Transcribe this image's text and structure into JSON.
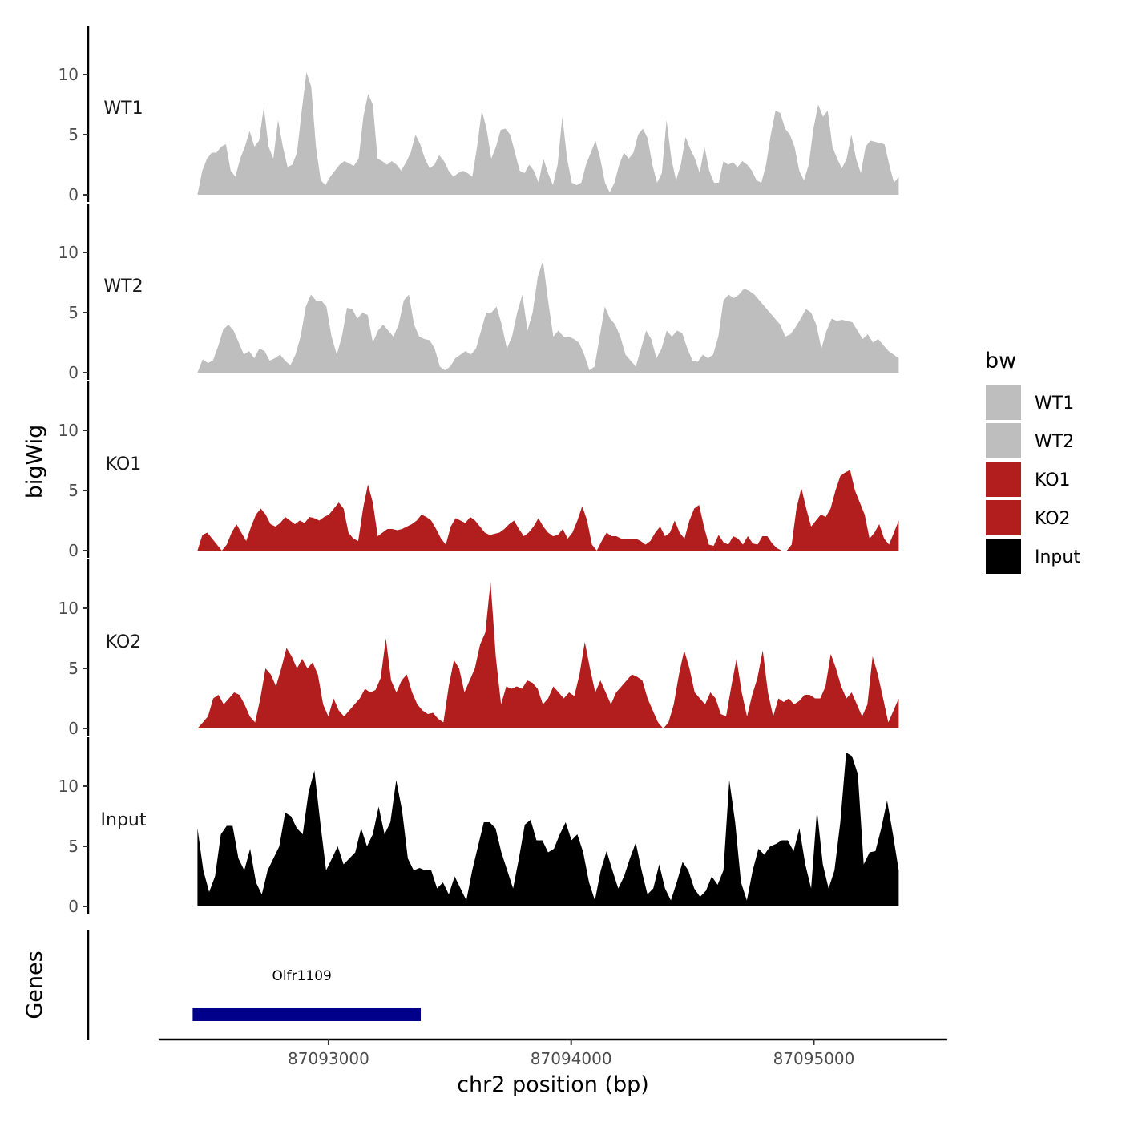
{
  "chart_data": {
    "type": "area",
    "xlabel": "chr2 position (bp)",
    "ylabel": "bigWig",
    "genes_label": "Genes",
    "xlim": [
      87092300,
      87095550
    ],
    "x_ticks": [
      87093000,
      87094000,
      87095000
    ],
    "x_tick_labels": [
      "87093000",
      "87094000",
      "87095000"
    ],
    "ylim": [
      0,
      14
    ],
    "y_ticks": [
      0,
      5,
      10
    ],
    "y_tick_labels": [
      "0",
      "5",
      "10"
    ],
    "x_start": 87092460,
    "x_end": 87095350,
    "series": [
      {
        "name": "WT1",
        "color": "#bebebe",
        "values": [
          0,
          2,
          3,
          3.5,
          3.5,
          4,
          4.2,
          2,
          1.5,
          3,
          4,
          5.3,
          4,
          4.5,
          7.3,
          4,
          3,
          6.2,
          4,
          2.3,
          2.5,
          3.5,
          7,
          10.2,
          9,
          4,
          1.2,
          0.8,
          1.5,
          2,
          2.5,
          2.8,
          2.6,
          2.4,
          3,
          6.5,
          8.4,
          7.5,
          3,
          2.8,
          2.5,
          2.8,
          2.5,
          2,
          2.7,
          3.5,
          5,
          4.2,
          3,
          2.2,
          2.5,
          3.3,
          2.8,
          2,
          1.5,
          1.8,
          2,
          1.8,
          1.5,
          4,
          7,
          5.5,
          3,
          4,
          5.4,
          5.5,
          5,
          3.5,
          2,
          1.8,
          2.5,
          2,
          1,
          3,
          1.8,
          0.8,
          2.5,
          6.5,
          3,
          1,
          0.8,
          1,
          2.5,
          3.5,
          4.5,
          3,
          1,
          0.2,
          1,
          2.5,
          3.5,
          3,
          3.5,
          5,
          5.5,
          4.7,
          2.5,
          1,
          1.8,
          6.2,
          3,
          1.2,
          2.5,
          4.8,
          3.8,
          3,
          1.8,
          4,
          2,
          1,
          1,
          2.8,
          2.5,
          2.7,
          2.3,
          2.8,
          2.5,
          2,
          1.2,
          1,
          2.5,
          5,
          7,
          6.8,
          5.5,
          5,
          4,
          2,
          1.2,
          2.5,
          5.5,
          7.5,
          6.5,
          7,
          4,
          3,
          2.2,
          3,
          5,
          3,
          1.8,
          4,
          4.5,
          4.4,
          4.3,
          4.2,
          2.5,
          1,
          1.5
        ]
      },
      {
        "name": "WT2",
        "color": "#bebebe",
        "values": [
          0,
          1.1,
          0.8,
          1,
          2.2,
          3.6,
          4,
          3.5,
          2.5,
          1.5,
          1.8,
          1.2,
          2,
          1.8,
          1,
          1.2,
          1.5,
          1,
          0.6,
          1.5,
          3,
          5.5,
          6.5,
          6,
          6,
          5.5,
          3,
          1.5,
          3,
          5.4,
          5.3,
          4.5,
          5,
          4.8,
          2.5,
          3.5,
          4,
          3.5,
          3,
          4,
          6,
          6.5,
          4,
          3,
          2.8,
          2.7,
          2,
          0.5,
          0.2,
          0.5,
          1.2,
          1.5,
          1.8,
          1.5,
          2,
          3.5,
          5,
          5,
          5.5,
          4,
          2,
          3,
          5,
          6.5,
          3.5,
          5,
          8,
          9.3,
          6,
          3,
          3.5,
          3,
          3,
          2.8,
          2.5,
          1.5,
          0.2,
          0.5,
          3,
          5.5,
          4.5,
          4,
          3,
          1.5,
          1,
          0.5,
          2,
          3.5,
          2.8,
          1.2,
          2,
          3.5,
          3,
          3.5,
          3.3,
          2,
          1,
          0.9,
          1.5,
          1.2,
          1.5,
          3,
          6,
          6.5,
          6.2,
          6.5,
          7,
          6.8,
          6.5,
          6,
          5.5,
          5,
          4.5,
          4,
          3,
          3.2,
          3.8,
          4.5,
          5.3,
          5,
          4,
          2,
          3.5,
          4.5,
          4.3,
          4.4,
          4.3,
          4.2,
          3.5,
          2.8,
          3.2,
          2.5,
          2.8,
          2.3,
          1.8,
          1.5,
          1.2
        ]
      },
      {
        "name": "KO1",
        "color": "#b21e1e",
        "values": [
          0,
          1.3,
          1.5,
          1,
          0.5,
          0,
          0.5,
          1.5,
          2.2,
          1.5,
          0.8,
          2,
          3,
          3.5,
          3,
          2.2,
          2,
          2.3,
          2.8,
          2.5,
          2.2,
          2.5,
          2.3,
          2.8,
          2.7,
          2.5,
          2.8,
          3,
          3.5,
          4,
          3.5,
          1.5,
          1,
          0.8,
          3.5,
          5.5,
          4,
          1.2,
          1.5,
          1.8,
          1.8,
          1.7,
          1.8,
          2,
          2.2,
          2.5,
          3,
          2.8,
          2.5,
          1.8,
          1,
          0.5,
          2,
          2.7,
          2.5,
          2.3,
          2.8,
          2.5,
          2,
          1.5,
          1.3,
          1.4,
          1.5,
          1.8,
          2.2,
          2.5,
          1.8,
          1.2,
          1.5,
          2,
          2.7,
          2,
          1.5,
          1.2,
          1.3,
          1.8,
          1,
          1.5,
          2.5,
          3.7,
          2.5,
          0.5,
          0,
          0.8,
          1.5,
          1.2,
          1.2,
          1,
          1,
          1,
          1,
          0.8,
          0.5,
          0.8,
          1.5,
          2,
          1.2,
          1.5,
          2.5,
          1.5,
          1,
          2.5,
          3.5,
          3.8,
          2,
          0.5,
          0.4,
          1.3,
          0.7,
          0.5,
          1.2,
          1,
          0.5,
          1.2,
          0.6,
          0.5,
          1.2,
          1.2,
          0.6,
          0.2,
          0,
          0,
          0.5,
          3.5,
          5.2,
          3.5,
          2,
          2.5,
          3,
          2.8,
          3.5,
          5,
          6.2,
          6.5,
          6.7,
          5,
          4,
          3,
          1,
          1.5,
          2.2,
          1,
          0.5,
          1.5,
          2.5
        ]
      },
      {
        "name": "KO2",
        "color": "#b21e1e",
        "values": [
          0,
          0.5,
          1,
          2.5,
          2.8,
          2,
          2.5,
          3,
          2.8,
          2,
          1,
          0.5,
          2.5,
          5,
          4.5,
          3.5,
          5,
          6.7,
          6,
          5,
          5.8,
          5,
          5.5,
          4.5,
          2,
          1,
          2.5,
          1.5,
          1,
          1.5,
          2,
          2.5,
          3.3,
          3,
          3.2,
          4.2,
          7.5,
          4,
          3,
          4,
          4.5,
          3,
          2,
          1.5,
          1.2,
          1.3,
          0.8,
          0.5,
          3.5,
          5.7,
          5,
          3,
          4,
          5,
          7,
          8,
          12.2,
          6,
          2,
          3.5,
          3.3,
          3.5,
          3.3,
          4,
          3.8,
          3.3,
          2,
          2.5,
          3.5,
          3,
          2.5,
          3,
          2.7,
          4.5,
          7.2,
          5,
          3,
          4,
          3,
          2,
          3,
          3.5,
          4,
          4.5,
          4.3,
          4,
          2.5,
          1.5,
          0.5,
          0,
          0.5,
          2,
          4.5,
          6.5,
          5,
          3,
          2.5,
          2,
          3,
          2.5,
          1.2,
          1,
          3.5,
          5.8,
          3,
          1,
          2.8,
          4.2,
          6.5,
          3,
          1,
          2.5,
          2.2,
          2.5,
          2,
          2.3,
          2.8,
          2.8,
          2.5,
          2.5,
          3.5,
          6.2,
          5,
          3.5,
          2.5,
          3,
          2,
          1,
          2,
          6,
          4.5,
          2.5,
          0.5,
          1.5,
          2.5
        ]
      },
      {
        "name": "Input",
        "color": "#000000",
        "values": [
          6.5,
          3,
          1.2,
          2.5,
          6,
          6.7,
          6.7,
          4,
          3,
          4.8,
          2,
          1,
          3,
          4,
          5,
          7.8,
          7.5,
          6.5,
          6,
          9.5,
          11.3,
          7,
          3,
          4,
          5,
          3.5,
          4,
          4.5,
          6.5,
          5,
          6,
          8.3,
          6,
          7,
          10.5,
          8,
          4,
          3,
          3.2,
          3,
          3,
          1.5,
          2,
          1,
          2.5,
          1.5,
          0.5,
          3,
          5,
          7,
          7,
          6.5,
          4.5,
          3,
          1.5,
          4,
          6.8,
          7.2,
          5.5,
          5.5,
          4.5,
          4.8,
          6,
          7,
          5.5,
          6,
          4.5,
          2,
          0.5,
          3,
          4.6,
          3,
          1.5,
          2.5,
          4,
          5.3,
          3,
          1,
          1.5,
          3.5,
          1.5,
          0.5,
          2,
          3.7,
          3,
          1.5,
          0.8,
          1.3,
          2.5,
          1.8,
          3,
          10.5,
          7,
          2,
          0.5,
          3,
          4.8,
          4.3,
          5,
          5.2,
          5.5,
          5.5,
          4.6,
          6.5,
          3.5,
          1.5,
          8,
          3.5,
          1.5,
          3,
          7,
          12.8,
          12.5,
          11,
          3.5,
          4.5,
          4.6,
          6.5,
          8.8,
          6,
          3
        ]
      }
    ],
    "legend": {
      "title": "bw",
      "items": [
        {
          "label": "WT1",
          "color": "#bebebe"
        },
        {
          "label": "WT2",
          "color": "#bebebe"
        },
        {
          "label": "KO1",
          "color": "#b21e1e"
        },
        {
          "label": "KO2",
          "color": "#b21e1e"
        },
        {
          "label": "Input",
          "color": "#000000"
        }
      ]
    },
    "genes": [
      {
        "name": "Olfr1109",
        "start": 87092440,
        "end": 87093380,
        "color": "#00008b"
      }
    ]
  }
}
